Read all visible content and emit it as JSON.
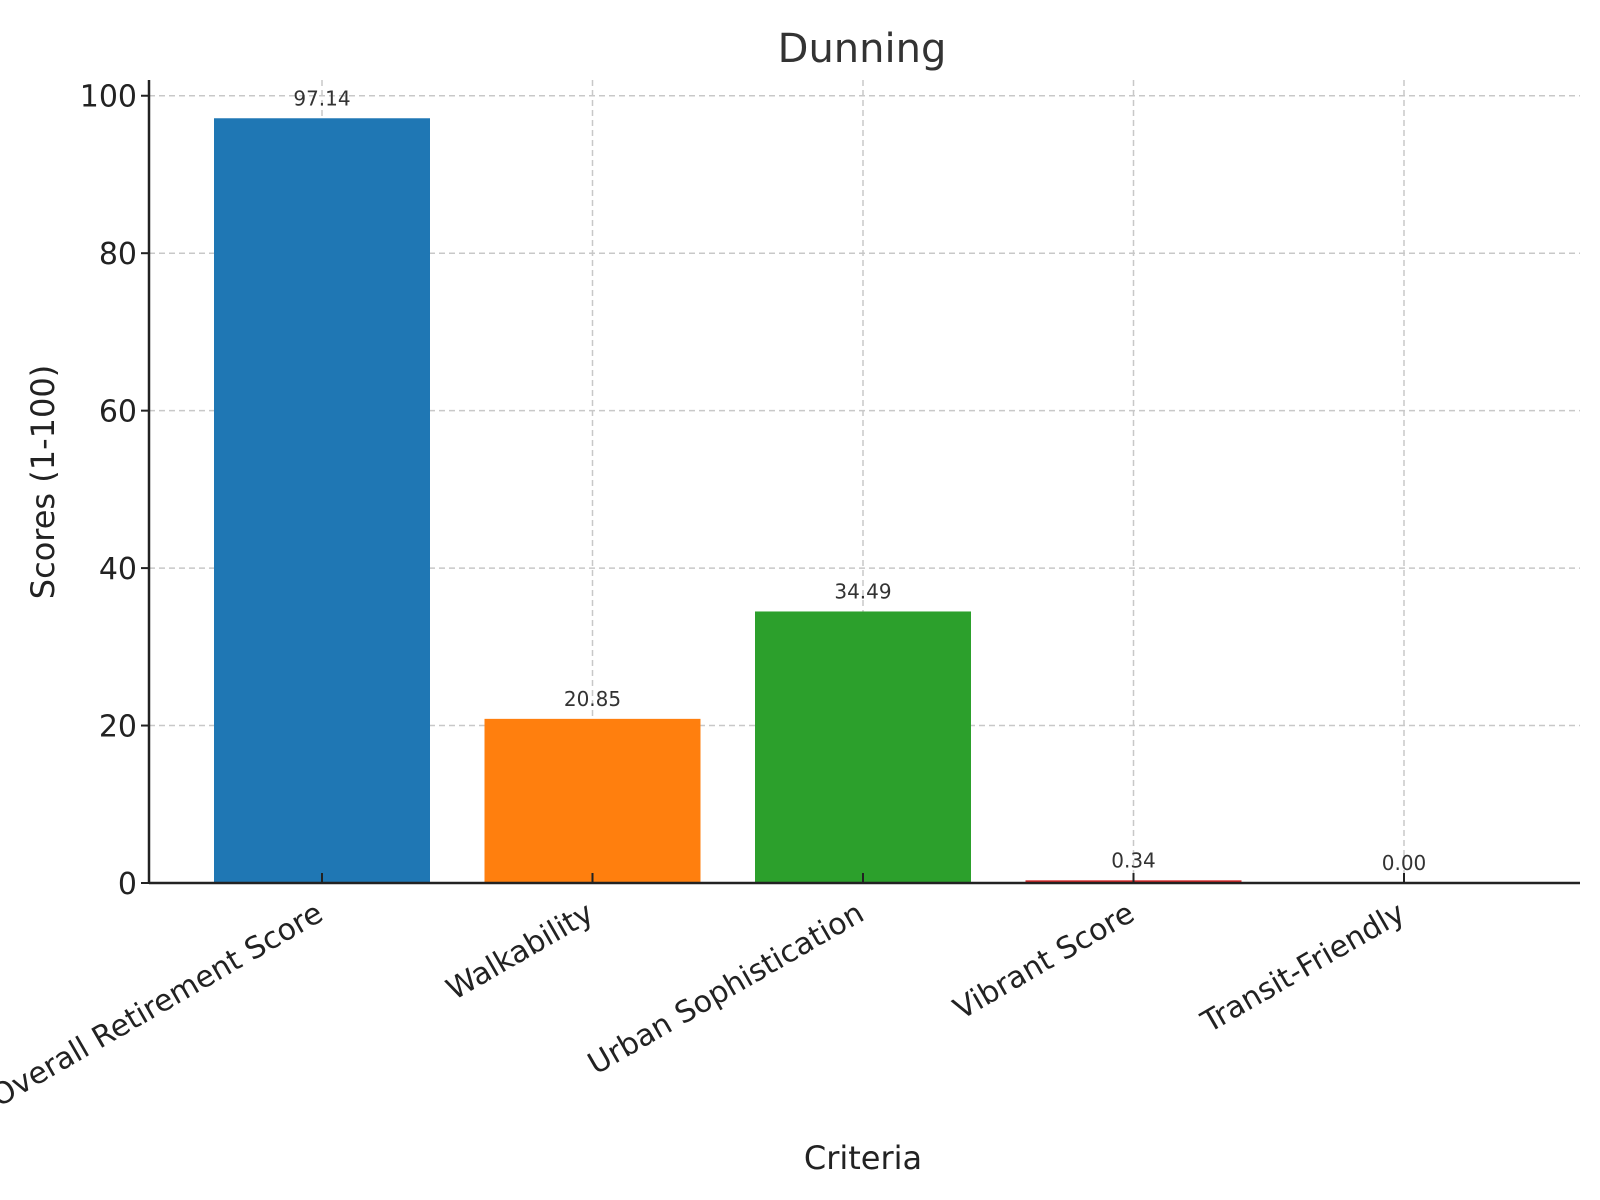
{
  "chart_data": {
    "type": "bar",
    "title": "Dunning",
    "xlabel": "Criteria",
    "ylabel": "Scores (1-100)",
    "categories": [
      "Overall Retirement Score",
      "Walkability",
      "Urban Sophistication",
      "Vibrant Score",
      "Transit-Friendly"
    ],
    "values": [
      97.14,
      20.85,
      34.49,
      0.34,
      0.0
    ],
    "value_labels": [
      "97.14",
      "20.85",
      "34.49",
      "0.34",
      "0.00"
    ],
    "colors": [
      "#1f77b4",
      "#ff7f0e",
      "#2ca02c",
      "#d62728",
      "#9467bd"
    ],
    "ylim": [
      0,
      102
    ],
    "yticks": [
      0,
      20,
      40,
      60,
      80,
      100
    ],
    "grid": true,
    "legend": "none"
  }
}
